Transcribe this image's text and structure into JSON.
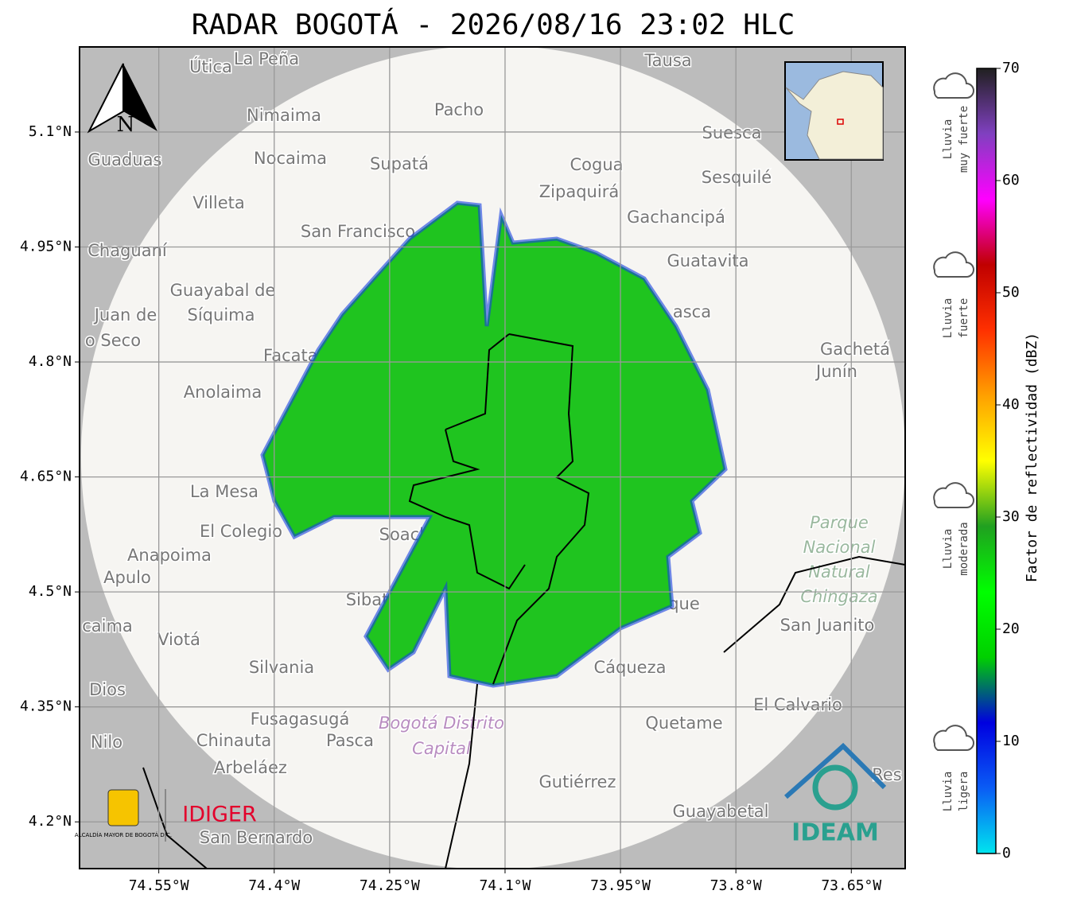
{
  "map": {
    "title": "RADAR BOGOTÁ - 2026/08/16 23:02 HLC",
    "xlim": [
      -74.653,
      -73.58
    ],
    "ylim": [
      4.139,
      5.211
    ],
    "xticks": [
      {
        "value": -74.55,
        "label": "74.55°W"
      },
      {
        "value": -74.4,
        "label": "74.4°W"
      },
      {
        "value": -74.25,
        "label": "74.25°W"
      },
      {
        "value": -74.1,
        "label": "74.1°W"
      },
      {
        "value": -73.95,
        "label": "73.95°W"
      },
      {
        "value": -73.8,
        "label": "73.8°W"
      },
      {
        "value": -73.65,
        "label": "73.65°W"
      }
    ],
    "yticks": [
      {
        "value": 5.1,
        "label": "5.1°N"
      },
      {
        "value": 4.95,
        "label": "4.95°N"
      },
      {
        "value": 4.8,
        "label": "4.8°N"
      },
      {
        "value": 4.65,
        "label": "4.65°N"
      },
      {
        "value": 4.5,
        "label": "4.5°N"
      },
      {
        "value": 4.35,
        "label": "4.35°N"
      },
      {
        "value": 4.2,
        "label": "4.2°N"
      }
    ],
    "grid": true,
    "north": "N",
    "places": [
      "Útica",
      "La Peña",
      "Tausa",
      "Pacho",
      "Nimaima",
      "Guaduas",
      "Nocaima",
      "Supatá",
      "Cogua",
      "Suesca",
      "Sesquilé",
      "Zipaquirá",
      "Villeta",
      "Gachancipá",
      "San Francisco",
      "Chaguaní",
      "Guatavita",
      "Guayabal de",
      "Síquima",
      "Juan de",
      "o Seco",
      "Facatativá",
      "asca",
      "Gachetá",
      "Junín",
      "Anolaima",
      "La Mesa",
      "El Colegio",
      "Soacha",
      "Anapoima",
      "Apulo",
      "Sibaté",
      "que",
      "San Juanito",
      "caima",
      "Viotá",
      "Silvania",
      "Cáqueza",
      "Dios",
      "El Calvario",
      "Fusagasugá",
      "Quetame",
      "Nilo",
      "Chinauta",
      "Pasca",
      "Arbeláez",
      "Gutiérrez",
      "Res",
      "Guayabetal",
      "San Bernardo"
    ],
    "park": [
      "Parque",
      "Nacional",
      "Natural",
      "Chingaza"
    ],
    "district": [
      "Bogotá Distrito",
      "Capital"
    ],
    "logos": {
      "alcaldia": "ALCALDÍA MAYOR DE BOGOTÁ D.C.",
      "idiger": "IDIGER",
      "ideam": "IDEAM"
    }
  },
  "colorbar": {
    "label": "Factor de reflectividad (dBZ)",
    "lim": [
      0,
      70
    ],
    "ticks": [
      0,
      10,
      20,
      30,
      40,
      50,
      60,
      70
    ],
    "colors": [
      "#00e5ee",
      "#0a5cf5",
      "#0000e0",
      "#00d000",
      "#00ff00",
      "#20a020",
      "#ffff00",
      "#ffa000",
      "#ff3000",
      "#c00000",
      "#ff00ff",
      "#8040c0",
      "#202020"
    ],
    "intensity": [
      [
        "Lluvia",
        "muy fuerte"
      ],
      [
        "Lluvia",
        "fuerte"
      ],
      [
        "Lluvia",
        "moderada"
      ],
      [
        "Lluvia",
        "ligera"
      ]
    ]
  }
}
